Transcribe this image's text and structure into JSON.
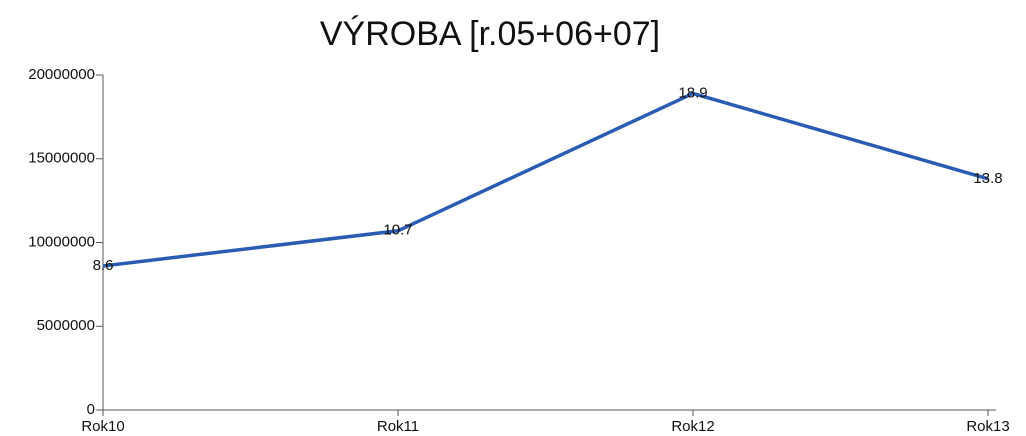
{
  "chart_data": {
    "type": "line",
    "title": "VÝROBA [r.05+06+07]",
    "categories": [
      "Rok10",
      "Rok11",
      "Rok12",
      "Rok13"
    ],
    "values": [
      8600000,
      10700000,
      18900000,
      13800000
    ],
    "value_labels": [
      "8.6",
      "10.7",
      "18.9",
      "13.8"
    ],
    "color": "#2b5cb3",
    "ylim": [
      0,
      20000000
    ],
    "yticks": [
      0,
      5000000,
      10000000,
      15000000,
      20000000
    ],
    "grid": false
  }
}
